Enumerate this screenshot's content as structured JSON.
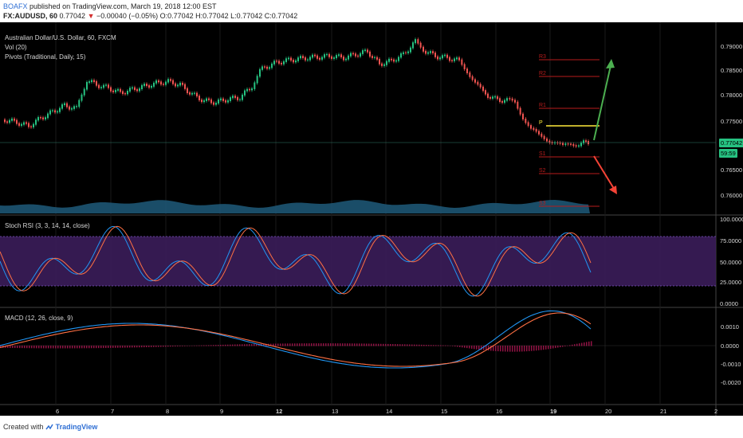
{
  "header": {
    "author": "BOAFX",
    "published_text": "published on TradingView.com, March 19, 2018 12:00 EST",
    "symbol": "FX:AUDUSD, 60",
    "last": "0.77042",
    "change": "−0.00040 (−0.05%)",
    "ohlc": "O:0.77042 H:0.77042 L:0.77042 C:0.77042"
  },
  "panes": {
    "main_title": "Australian Dollar/U.S. Dollar, 60, FXCM",
    "vol_label": "Vol (20)",
    "pivots_label": "Pivots (Traditional, Daily, 15)",
    "stoch_label": "Stoch RSI (3, 3, 14, 14, close)",
    "macd_label": "MACD (12, 26, close, 9)"
  },
  "price_axis": [
    "0.79000",
    "0.78500",
    "0.78000",
    "0.77500",
    "0.77042",
    "0.76500",
    "0.76000"
  ],
  "current_price": "0.77042",
  "countdown": "59:59",
  "stoch_axis": [
    "100.0000",
    "75.0000",
    "50.0000",
    "25.0000",
    "0.0000"
  ],
  "macd_axis": [
    "0.0010",
    "0.0000",
    "-0.0010",
    "-0.0020"
  ],
  "time_axis": [
    "6",
    "7",
    "8",
    "9",
    "12",
    "13",
    "14",
    "15",
    "16",
    "19",
    "20",
    "21",
    "2"
  ],
  "pivot_labels": [
    "R3",
    "R2",
    "R1",
    "P",
    "S1",
    "S2",
    "S3"
  ],
  "colors": {
    "up": "#26c281",
    "down": "#ef5350",
    "pivot": "#b71c1c",
    "pivot_p": "#ffeb3b",
    "arrow_up": "#4caf50",
    "arrow_down": "#f44336",
    "stoch_band": "#3b1d5a",
    "stoch_k": "#2196f3",
    "stoch_d": "#ff7043"
  },
  "footer": {
    "created_with": "Created with",
    "brand": "TradingView"
  }
}
